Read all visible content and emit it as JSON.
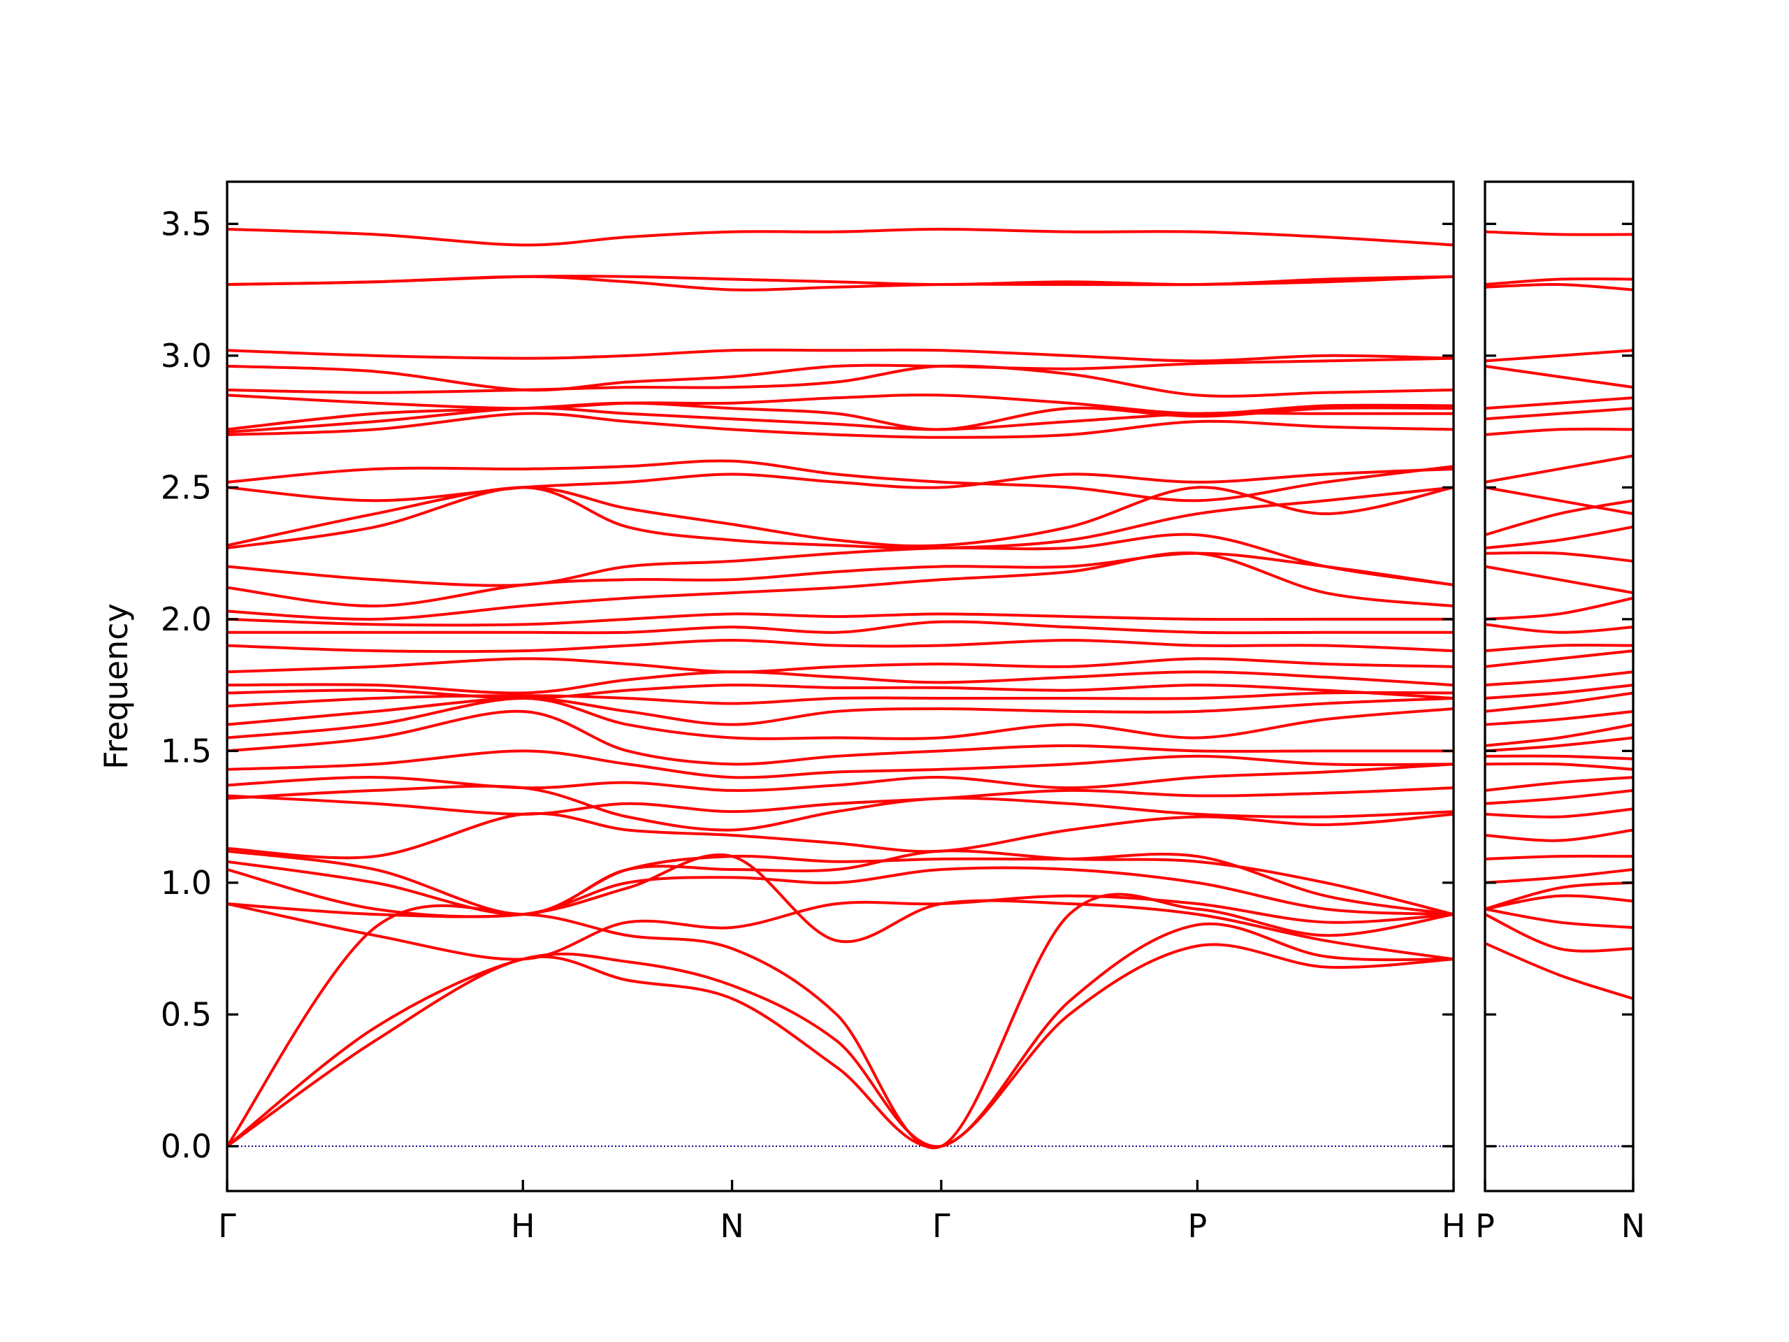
{
  "chart_data": [
    {
      "type": "line",
      "ylabel": "Frequency",
      "color": "#ff0000",
      "zero_line": true,
      "zero_line_color": "#00008b",
      "xlim": [
        0,
        4.1463
      ],
      "ylim": [
        -0.17,
        3.66
      ],
      "xticks": [
        {
          "value": 0,
          "label": "Γ"
        },
        {
          "value": 1,
          "label": "H"
        },
        {
          "value": 1.7071,
          "label": "N"
        },
        {
          "value": 2.4142,
          "label": "Γ"
        },
        {
          "value": 3.2802,
          "label": "P"
        },
        {
          "value": 4.1463,
          "label": "H"
        }
      ],
      "yticks": [
        {
          "value": 0,
          "label": "0.0"
        },
        0.5,
        {
          "value": 1,
          "label": "1.0"
        },
        1.5,
        {
          "value": 2,
          "label": "2.0"
        },
        2.5,
        {
          "value": 3,
          "label": "3.0"
        },
        3.5
      ],
      "x": [
        0,
        0.5,
        1,
        1.3536,
        1.7071,
        2.0607,
        2.4142,
        2.8472,
        3.2802,
        3.7133,
        4.1463
      ],
      "series": [
        {
          "values": [
            0,
            0.4,
            0.71,
            0.63,
            0.56,
            0.3,
            0,
            0.5,
            0.76,
            0.68,
            0.71
          ]
        },
        {
          "values": [
            0,
            0.45,
            0.71,
            0.7,
            0.61,
            0.4,
            0,
            0.55,
            0.84,
            0.72,
            0.71
          ]
        },
        {
          "values": [
            0,
            0.83,
            0.88,
            0.8,
            0.75,
            0.5,
            0,
            0.88,
            0.9,
            0.8,
            0.88
          ]
        },
        {
          "values": [
            0.92,
            0.88,
            0.88,
            0.98,
            1.1,
            0.78,
            0.92,
            0.92,
            0.88,
            0.78,
            0.71
          ]
        },
        {
          "values": [
            0.92,
            0.8,
            0.71,
            0.85,
            0.83,
            0.92,
            0.92,
            0.95,
            0.92,
            0.85,
            0.88
          ]
        },
        {
          "values": [
            1.05,
            0.9,
            0.88,
            1.0,
            1.02,
            1.0,
            1.05,
            1.05,
            1.0,
            0.9,
            0.88
          ]
        },
        {
          "values": [
            1.08,
            1.0,
            0.88,
            1.05,
            1.1,
            1.08,
            1.09,
            1.09,
            1.1,
            0.95,
            0.88
          ]
        },
        {
          "values": [
            1.12,
            1.05,
            0.88,
            1.05,
            1.05,
            1.05,
            1.12,
            1.09,
            1.08,
            1.0,
            0.88
          ]
        },
        {
          "values": [
            1.13,
            1.1,
            1.26,
            1.2,
            1.18,
            1.15,
            1.12,
            1.2,
            1.25,
            1.22,
            1.26
          ]
        },
        {
          "values": [
            1.32,
            1.35,
            1.36,
            1.25,
            1.2,
            1.27,
            1.32,
            1.3,
            1.26,
            1.25,
            1.27
          ]
        },
        {
          "values": [
            1.33,
            1.3,
            1.26,
            1.3,
            1.27,
            1.3,
            1.32,
            1.35,
            1.33,
            1.34,
            1.36
          ]
        },
        {
          "values": [
            1.37,
            1.4,
            1.36,
            1.38,
            1.35,
            1.37,
            1.4,
            1.36,
            1.4,
            1.42,
            1.45
          ]
        },
        {
          "values": [
            1.43,
            1.45,
            1.5,
            1.45,
            1.4,
            1.42,
            1.43,
            1.45,
            1.48,
            1.45,
            1.45
          ]
        },
        {
          "values": [
            1.5,
            1.55,
            1.65,
            1.5,
            1.45,
            1.48,
            1.5,
            1.52,
            1.5,
            1.5,
            1.5
          ]
        },
        {
          "values": [
            1.55,
            1.6,
            1.7,
            1.6,
            1.55,
            1.55,
            1.55,
            1.6,
            1.55,
            1.62,
            1.66
          ]
        },
        {
          "values": [
            1.6,
            1.65,
            1.7,
            1.65,
            1.6,
            1.65,
            1.66,
            1.65,
            1.65,
            1.68,
            1.7
          ]
        },
        {
          "values": [
            1.67,
            1.7,
            1.71,
            1.7,
            1.68,
            1.7,
            1.7,
            1.7,
            1.7,
            1.72,
            1.72
          ]
        },
        {
          "values": [
            1.72,
            1.73,
            1.7,
            1.73,
            1.75,
            1.74,
            1.74,
            1.73,
            1.75,
            1.73,
            1.7
          ]
        },
        {
          "values": [
            1.75,
            1.75,
            1.72,
            1.77,
            1.8,
            1.78,
            1.76,
            1.78,
            1.8,
            1.78,
            1.75
          ]
        },
        {
          "values": [
            1.8,
            1.82,
            1.85,
            1.83,
            1.8,
            1.82,
            1.83,
            1.82,
            1.85,
            1.83,
            1.82
          ]
        },
        {
          "values": [
            1.9,
            1.88,
            1.88,
            1.9,
            1.92,
            1.9,
            1.9,
            1.92,
            1.9,
            1.9,
            1.88
          ]
        },
        {
          "values": [
            1.95,
            1.95,
            1.95,
            1.95,
            1.97,
            1.95,
            1.99,
            1.97,
            1.95,
            1.95,
            1.95
          ]
        },
        {
          "values": [
            2.0,
            1.98,
            1.98,
            2.0,
            2.02,
            2.01,
            2.02,
            2.01,
            2.0,
            2.0,
            2.0
          ]
        },
        {
          "values": [
            2.03,
            2.0,
            2.05,
            2.08,
            2.1,
            2.12,
            2.15,
            2.18,
            2.25,
            2.1,
            2.05
          ]
        },
        {
          "values": [
            2.12,
            2.05,
            2.13,
            2.15,
            2.15,
            2.18,
            2.2,
            2.2,
            2.25,
            2.2,
            2.13
          ]
        },
        {
          "values": [
            2.2,
            2.15,
            2.13,
            2.2,
            2.22,
            2.25,
            2.27,
            2.27,
            2.32,
            2.2,
            2.13
          ]
        },
        {
          "values": [
            2.27,
            2.35,
            2.5,
            2.35,
            2.3,
            2.28,
            2.27,
            2.3,
            2.4,
            2.45,
            2.5
          ]
        },
        {
          "values": [
            2.28,
            2.4,
            2.5,
            2.42,
            2.36,
            2.3,
            2.28,
            2.35,
            2.5,
            2.4,
            2.5
          ]
        },
        {
          "values": [
            2.5,
            2.45,
            2.5,
            2.52,
            2.55,
            2.52,
            2.5,
            2.55,
            2.52,
            2.55,
            2.57
          ]
        },
        {
          "values": [
            2.52,
            2.57,
            2.57,
            2.58,
            2.6,
            2.55,
            2.52,
            2.5,
            2.45,
            2.52,
            2.58
          ]
        },
        {
          "values": [
            2.7,
            2.72,
            2.78,
            2.75,
            2.72,
            2.7,
            2.69,
            2.7,
            2.75,
            2.73,
            2.72
          ]
        },
        {
          "values": [
            2.71,
            2.75,
            2.8,
            2.78,
            2.76,
            2.74,
            2.72,
            2.75,
            2.78,
            2.78,
            2.78
          ]
        },
        {
          "values": [
            2.72,
            2.78,
            2.8,
            2.82,
            2.8,
            2.78,
            2.72,
            2.8,
            2.77,
            2.8,
            2.8
          ]
        },
        {
          "values": [
            2.85,
            2.82,
            2.8,
            2.82,
            2.82,
            2.84,
            2.85,
            2.82,
            2.78,
            2.81,
            2.81
          ]
        },
        {
          "values": [
            2.87,
            2.86,
            2.87,
            2.88,
            2.88,
            2.9,
            2.96,
            2.93,
            2.85,
            2.86,
            2.87
          ]
        },
        {
          "values": [
            2.96,
            2.94,
            2.87,
            2.9,
            2.92,
            2.96,
            2.96,
            2.95,
            2.97,
            2.98,
            2.99
          ]
        },
        {
          "values": [
            3.02,
            3.0,
            2.99,
            3.0,
            3.02,
            3.02,
            3.02,
            3.0,
            2.98,
            3.0,
            2.99
          ]
        },
        {
          "values": [
            3.27,
            3.28,
            3.3,
            3.28,
            3.25,
            3.26,
            3.27,
            3.27,
            3.27,
            3.28,
            3.3
          ]
        },
        {
          "values": [
            3.27,
            3.28,
            3.3,
            3.3,
            3.29,
            3.28,
            3.27,
            3.28,
            3.27,
            3.29,
            3.3
          ]
        },
        {
          "values": [
            3.48,
            3.46,
            3.42,
            3.45,
            3.47,
            3.47,
            3.48,
            3.47,
            3.47,
            3.45,
            3.42
          ]
        }
      ]
    },
    {
      "type": "line",
      "color": "#ff0000",
      "zero_line": true,
      "zero_line_color": "#00008b",
      "xlim": [
        0,
        0.5
      ],
      "ylim": [
        -0.17,
        3.66
      ],
      "xticks": [
        {
          "value": 0,
          "label": "P"
        },
        {
          "value": 0.5,
          "label": "N"
        }
      ],
      "yticks": [
        0,
        0.5,
        1,
        1.5,
        2,
        2.5,
        3,
        3.5
      ],
      "x": [
        0,
        0.25,
        0.5
      ],
      "series": [
        {
          "values": [
            0.77,
            0.65,
            0.56
          ]
        },
        {
          "values": [
            0.88,
            0.75,
            0.75
          ]
        },
        {
          "values": [
            0.9,
            0.85,
            0.83
          ]
        },
        {
          "values": [
            0.9,
            0.95,
            0.93
          ]
        },
        {
          "values": [
            0.9,
            0.98,
            1.0
          ]
        },
        {
          "values": [
            1.0,
            1.02,
            1.05
          ]
        },
        {
          "values": [
            1.09,
            1.1,
            1.1
          ]
        },
        {
          "values": [
            1.18,
            1.16,
            1.2
          ]
        },
        {
          "values": [
            1.26,
            1.25,
            1.28
          ]
        },
        {
          "values": [
            1.3,
            1.32,
            1.35
          ]
        },
        {
          "values": [
            1.35,
            1.38,
            1.4
          ]
        },
        {
          "values": [
            1.45,
            1.45,
            1.43
          ]
        },
        {
          "values": [
            1.48,
            1.48,
            1.47
          ]
        },
        {
          "values": [
            1.5,
            1.52,
            1.55
          ]
        },
        {
          "values": [
            1.52,
            1.55,
            1.6
          ]
        },
        {
          "values": [
            1.6,
            1.62,
            1.65
          ]
        },
        {
          "values": [
            1.65,
            1.68,
            1.72
          ]
        },
        {
          "values": [
            1.7,
            1.72,
            1.75
          ]
        },
        {
          "values": [
            1.75,
            1.77,
            1.8
          ]
        },
        {
          "values": [
            1.82,
            1.85,
            1.88
          ]
        },
        {
          "values": [
            1.88,
            1.9,
            1.9
          ]
        },
        {
          "values": [
            1.98,
            1.95,
            1.97
          ]
        },
        {
          "values": [
            2.0,
            2.02,
            2.08
          ]
        },
        {
          "values": [
            2.2,
            2.15,
            2.1
          ]
        },
        {
          "values": [
            2.25,
            2.25,
            2.22
          ]
        },
        {
          "values": [
            2.27,
            2.3,
            2.35
          ]
        },
        {
          "values": [
            2.32,
            2.4,
            2.45
          ]
        },
        {
          "values": [
            2.5,
            2.45,
            2.4
          ]
        },
        {
          "values": [
            2.52,
            2.57,
            2.62
          ]
        },
        {
          "values": [
            2.7,
            2.72,
            2.72
          ]
        },
        {
          "values": [
            2.76,
            2.78,
            2.8
          ]
        },
        {
          "values": [
            2.8,
            2.82,
            2.84
          ]
        },
        {
          "values": [
            2.96,
            2.92,
            2.88
          ]
        },
        {
          "values": [
            2.98,
            3.0,
            3.02
          ]
        },
        {
          "values": [
            3.26,
            3.27,
            3.25
          ]
        },
        {
          "values": [
            3.27,
            3.29,
            3.29
          ]
        },
        {
          "values": [
            3.47,
            3.46,
            3.46
          ]
        }
      ]
    }
  ]
}
